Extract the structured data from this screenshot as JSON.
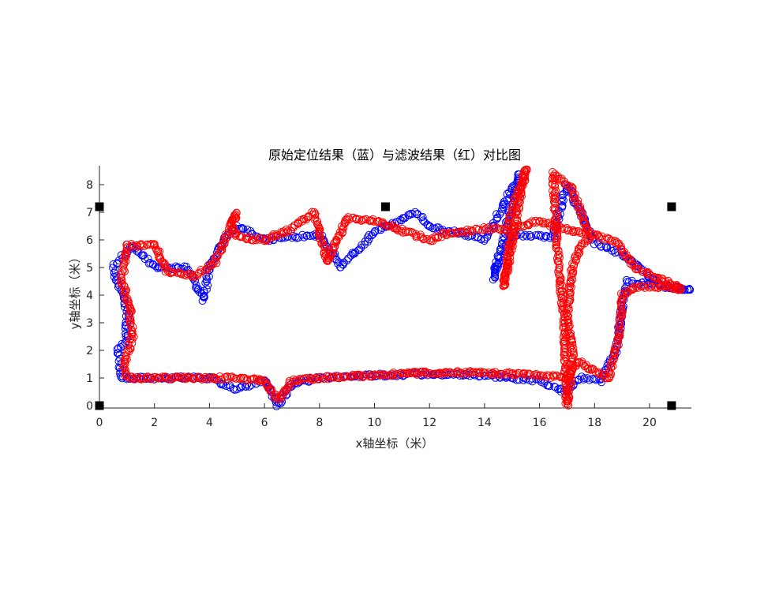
{
  "chart_data": {
    "type": "scatter",
    "title": "原始定位结果（蓝）与滤波结果（红）对比图",
    "xlabel": "x轴坐标（米）",
    "ylabel": "y轴坐标（米）",
    "xlim": [
      0,
      21.5
    ],
    "ylim": [
      -0.1,
      8.7
    ],
    "xticks": [
      0,
      2,
      4,
      6,
      8,
      10,
      12,
      14,
      16,
      18,
      20
    ],
    "yticks": [
      0,
      1,
      2,
      3,
      4,
      5,
      6,
      7,
      8
    ],
    "grid": false,
    "legend": "none",
    "colors": {
      "raw": "#0000ff",
      "filtered": "#ff0000",
      "anchor": "#000000"
    },
    "anchors": [
      [
        0,
        0
      ],
      [
        0,
        7.2
      ],
      [
        10.4,
        7.2
      ],
      [
        20.8,
        7.2
      ],
      [
        20.8,
        0
      ]
    ],
    "series": [
      {
        "marker": "circle",
        "color": "#0000ff",
        "path": [
          [
            0.8,
            1.0
          ],
          [
            2.0,
            1.0
          ],
          [
            4.0,
            1.0
          ],
          [
            5.0,
            0.6
          ],
          [
            6.0,
            0.9
          ],
          [
            6.5,
            0.0
          ],
          [
            7.0,
            0.8
          ],
          [
            8.0,
            1.0
          ],
          [
            10.0,
            1.1
          ],
          [
            12.0,
            1.15
          ],
          [
            14.0,
            1.1
          ],
          [
            16.0,
            0.9
          ],
          [
            16.9,
            0.5
          ],
          [
            17.5,
            1.0
          ],
          [
            18.2,
            0.9
          ],
          [
            18.8,
            2.0
          ],
          [
            19.0,
            3.5
          ],
          [
            19.2,
            4.5
          ],
          [
            20.0,
            4.4
          ],
          [
            21.5,
            4.2
          ],
          [
            20.5,
            4.3
          ],
          [
            19.0,
            5.5
          ],
          [
            18.0,
            5.9
          ],
          [
            17.0,
            8.0
          ],
          [
            16.5,
            6.1
          ],
          [
            15.0,
            6.2
          ],
          [
            14.3,
            4.6
          ],
          [
            15.3,
            8.4
          ],
          [
            14.0,
            6.0
          ],
          [
            12.0,
            6.5
          ],
          [
            11.5,
            7.0
          ],
          [
            10.0,
            6.3
          ],
          [
            8.8,
            5.0
          ],
          [
            8.0,
            6.2
          ],
          [
            6.0,
            6.0
          ],
          [
            5.0,
            6.5
          ],
          [
            4.5,
            6.0
          ],
          [
            4.0,
            5.0
          ],
          [
            3.8,
            3.8
          ],
          [
            3.2,
            5.0
          ],
          [
            2.0,
            5.0
          ],
          [
            1.2,
            5.8
          ],
          [
            0.5,
            5.0
          ],
          [
            1.0,
            3.5
          ],
          [
            1.0,
            2.5
          ],
          [
            0.7,
            2.0
          ],
          [
            0.8,
            1.0
          ]
        ]
      },
      {
        "marker": "circle",
        "color": "#ff0000",
        "path": [
          [
            1.0,
            1.0
          ],
          [
            2.0,
            1.0
          ],
          [
            4.0,
            1.0
          ],
          [
            5.0,
            1.0
          ],
          [
            6.0,
            0.9
          ],
          [
            6.5,
            0.2
          ],
          [
            7.0,
            0.9
          ],
          [
            8.0,
            1.0
          ],
          [
            10.0,
            1.1
          ],
          [
            12.0,
            1.2
          ],
          [
            14.0,
            1.2
          ],
          [
            16.0,
            1.1
          ],
          [
            17.0,
            1.0
          ],
          [
            17.4,
            1.6
          ],
          [
            18.5,
            1.0
          ],
          [
            18.9,
            2.5
          ],
          [
            19.0,
            4.0
          ],
          [
            19.5,
            4.3
          ],
          [
            20.5,
            4.3
          ],
          [
            21.2,
            4.2
          ],
          [
            19.5,
            5.0
          ],
          [
            18.8,
            5.9
          ],
          [
            18.0,
            6.2
          ],
          [
            17.5,
            5.8
          ],
          [
            17.2,
            5.0
          ],
          [
            17.0,
            3.2
          ],
          [
            17.2,
            1.8
          ],
          [
            17.0,
            0.0
          ],
          [
            16.9,
            3.0
          ],
          [
            16.7,
            5.0
          ],
          [
            16.5,
            8.4
          ],
          [
            17.2,
            7.8
          ],
          [
            17.8,
            6.2
          ],
          [
            16.5,
            6.5
          ],
          [
            16.0,
            6.7
          ],
          [
            15.0,
            6.4
          ],
          [
            14.7,
            4.3
          ],
          [
            15.5,
            8.6
          ],
          [
            14.8,
            6.4
          ],
          [
            14.0,
            6.4
          ],
          [
            12.5,
            6.2
          ],
          [
            12.0,
            6.0
          ],
          [
            10.0,
            6.7
          ],
          [
            9.0,
            6.8
          ],
          [
            8.3,
            5.2
          ],
          [
            7.8,
            7.0
          ],
          [
            7.0,
            6.4
          ],
          [
            6.0,
            6.0
          ],
          [
            5.0,
            6.1
          ],
          [
            4.8,
            6.6
          ],
          [
            5.0,
            7.0
          ],
          [
            4.2,
            5.2
          ],
          [
            3.5,
            4.7
          ],
          [
            2.5,
            4.8
          ],
          [
            2.0,
            5.8
          ],
          [
            1.0,
            5.8
          ],
          [
            0.8,
            4.5
          ],
          [
            1.1,
            3.6
          ],
          [
            1.2,
            2.5
          ],
          [
            0.9,
            1.5
          ],
          [
            1.0,
            1.0
          ]
        ]
      }
    ]
  }
}
